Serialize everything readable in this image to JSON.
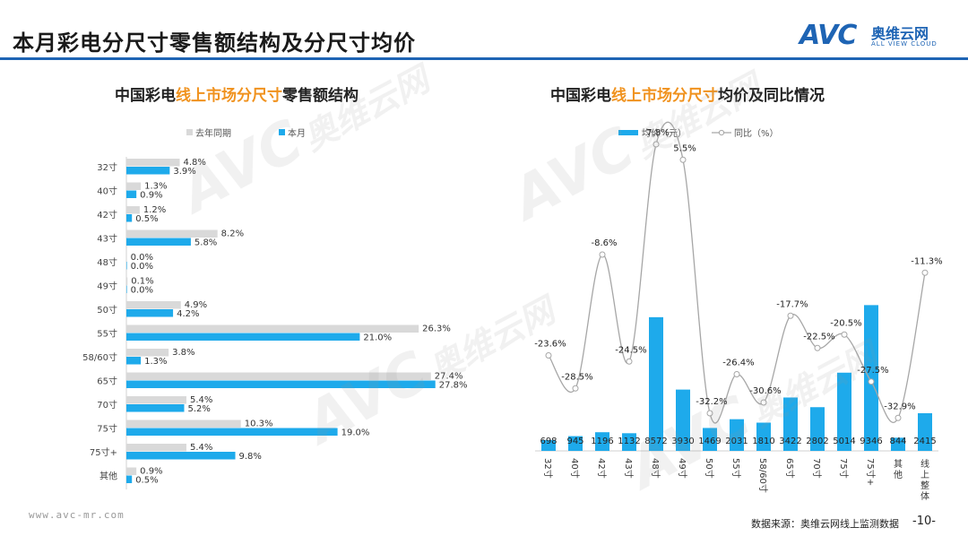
{
  "page": {
    "title": "本月彩电分尺寸零售额结构及分尺寸均价",
    "logo": {
      "brand": "AVC",
      "cn": "奥维云网",
      "en": "ALL VIEW CLOUD"
    },
    "watermark": {
      "brand": "AVC",
      "cn": "奥维云网",
      "en": "ALL VIEW CLOUD"
    },
    "footer": {
      "url": "www.avc-mr.com",
      "source": "数据来源：奥维云网线上监测数据",
      "page_number": "-10-"
    }
  },
  "colors": {
    "accent": "#1e64b4",
    "bar_current": "#1eaaeb",
    "bar_prev": "#d9d9d9",
    "highlight": "#f0921e",
    "line": "#a6a6a6"
  },
  "chart_data": [
    {
      "type": "bar",
      "orientation": "horizontal",
      "title_parts": [
        "中国彩电",
        "线上市场分尺寸",
        "零售额结构"
      ],
      "categories": [
        "32寸",
        "40寸",
        "42寸",
        "43寸",
        "48寸",
        "49寸",
        "50寸",
        "55寸",
        "58/60寸",
        "65寸",
        "70寸",
        "75寸",
        "75寸+",
        "其他"
      ],
      "series": [
        {
          "name": "去年同期",
          "values": [
            4.8,
            1.3,
            1.2,
            8.2,
            0.0,
            0.1,
            4.9,
            26.3,
            3.8,
            27.4,
            5.4,
            10.3,
            5.4,
            0.9
          ],
          "labels": [
            "4.8%",
            "1.3%",
            "1.2%",
            "8.2%",
            "0.0%",
            "0.1%",
            "4.9%",
            "26.3%",
            "3.8%",
            "27.4%",
            "5.4%",
            "10.3%",
            "5.4%",
            "0.9%"
          ]
        },
        {
          "name": "本月",
          "values": [
            3.9,
            0.9,
            0.5,
            5.8,
            0.0,
            0.0,
            4.2,
            21.0,
            1.3,
            27.8,
            5.2,
            19.0,
            9.8,
            0.5
          ],
          "labels": [
            "3.9%",
            "0.9%",
            "0.5%",
            "5.8%",
            "0.0%",
            "0.0%",
            "4.2%",
            "21.0%",
            "1.3%",
            "27.8%",
            "5.2%",
            "19.0%",
            "9.8%",
            "0.5%"
          ]
        }
      ],
      "xlim": [
        0,
        30
      ],
      "legend": "top-center"
    },
    {
      "type": "bar_line_combo",
      "title_parts": [
        "中国彩电",
        "线上市场分尺寸",
        "均价及同比情况"
      ],
      "categories": [
        "32寸",
        "40寸",
        "42寸",
        "43寸",
        "48寸",
        "49寸",
        "50寸",
        "55寸",
        "58/60寸",
        "65寸",
        "70寸",
        "75寸",
        "75寸+",
        "其他",
        "线上整体"
      ],
      "series": [
        {
          "name": "均价（元）",
          "kind": "bar",
          "values": [
            698,
            945,
            1196,
            1132,
            8572,
            3930,
            1469,
            2031,
            1810,
            3422,
            2802,
            5014,
            9346,
            844,
            2415
          ],
          "labels": [
            "698",
            "945",
            "1196",
            "1132",
            "8572",
            "3930",
            "1469",
            "2031",
            "1810",
            "3422",
            "2802",
            "5014",
            "9346",
            "844",
            "2415"
          ]
        },
        {
          "name": "同比（%）",
          "kind": "line",
          "values": [
            -23.6,
            -28.5,
            -8.6,
            -24.5,
            7.8,
            5.5,
            -32.2,
            -26.4,
            -30.6,
            -17.7,
            -22.5,
            -20.5,
            -27.5,
            -32.9,
            -11.3
          ],
          "labels": [
            "-23.6%",
            "-28.5%",
            "-8.6%",
            "-24.5%",
            "7.8%",
            "5.5%",
            "-32.2%",
            "-26.4%",
            "-30.6%",
            "-17.7%",
            "-22.5%",
            "-20.5%",
            "-27.5%",
            "-32.9%",
            "-11.3%"
          ]
        }
      ],
      "ylim_bar": [
        0,
        9500
      ],
      "ylim_line": [
        -36,
        10
      ],
      "legend": "top-center"
    }
  ]
}
